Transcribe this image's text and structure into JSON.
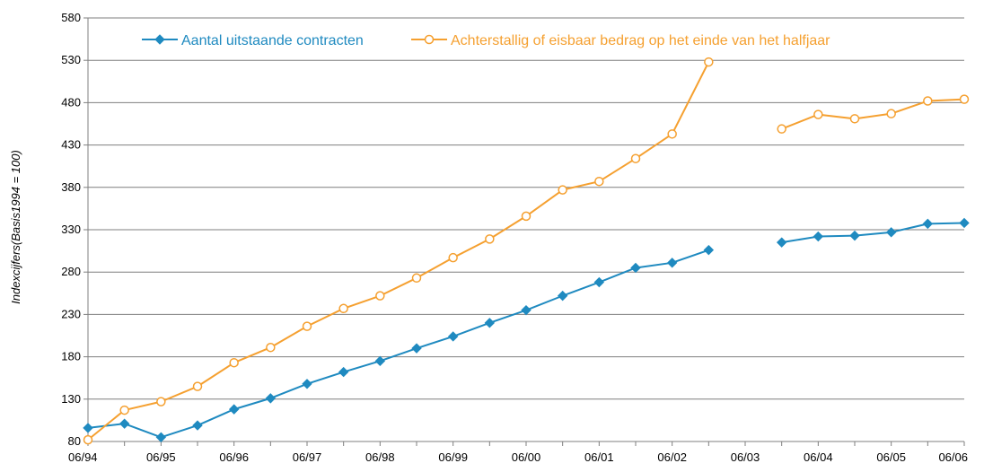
{
  "chart_data": {
    "type": "line",
    "title": "",
    "xlabel": "",
    "ylabel": "Indexcijfers(Basis1994 = 100)",
    "ylim": [
      80,
      580
    ],
    "yticks": [
      80,
      130,
      180,
      230,
      280,
      330,
      380,
      430,
      480,
      530,
      580
    ],
    "x_tick_labels": [
      "06/94",
      "06/95",
      "06/96",
      "06/97",
      "06/98",
      "06/99",
      "06/00",
      "06/01",
      "06/02",
      "06/03",
      "06/04",
      "06/05",
      "06/06"
    ],
    "x": [
      "06/94",
      "12/94",
      "06/95",
      "12/95",
      "06/96",
      "12/96",
      "06/97",
      "12/97",
      "06/98",
      "12/98",
      "06/99",
      "12/99",
      "06/00",
      "12/00",
      "06/01",
      "12/01",
      "06/02",
      "12/02",
      "06/03",
      "12/03",
      "06/04",
      "12/04",
      "06/05",
      "12/05",
      "06/06"
    ],
    "grid": true,
    "legend_position": "top",
    "series": [
      {
        "name": "Aantal uitstaande contracten",
        "color": "#1f8ac0",
        "marker": "diamond",
        "values": [
          96,
          101,
          85,
          99,
          118,
          131,
          148,
          162,
          175,
          190,
          204,
          220,
          235,
          252,
          268,
          285,
          291,
          306,
          null,
          315,
          322,
          323,
          327,
          337,
          338
        ]
      },
      {
        "name": "Achterstallig of eisbaar bedrag op het einde van het halfjaar",
        "color": "#f5a030",
        "marker": "circle-open",
        "values": [
          82,
          117,
          127,
          145,
          173,
          191,
          216,
          237,
          252,
          273,
          297,
          319,
          346,
          377,
          387,
          414,
          443,
          528,
          null,
          449,
          466,
          461,
          467,
          482,
          484
        ]
      }
    ]
  }
}
